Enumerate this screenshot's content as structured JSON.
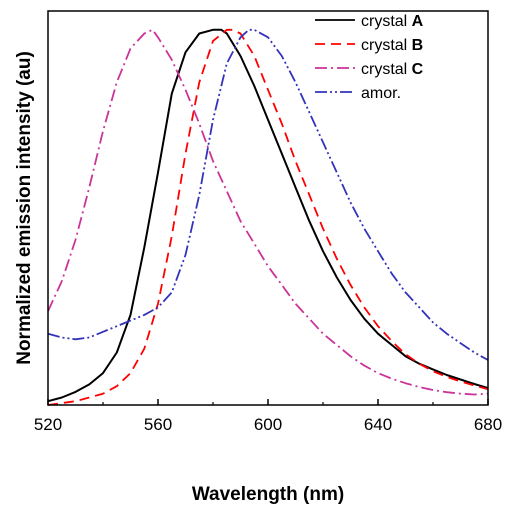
{
  "chart_data": {
    "type": "line",
    "xlabel": "Wavelength (nm)",
    "ylabel": "Normalized emission intensity (au)",
    "xlim": [
      520,
      680
    ],
    "ylim": [
      0,
      1.05
    ],
    "xticks": [
      "520",
      "560",
      "600",
      "640",
      "680"
    ],
    "grid": false,
    "legend_position": "top-right",
    "series": [
      {
        "name": "crystal ",
        "name_bold": "A",
        "color": "#000000",
        "dash": "solid",
        "x": [
          520,
          525,
          530,
          535,
          540,
          545,
          550,
          555,
          560,
          565,
          570,
          575,
          580,
          583,
          585,
          590,
          595,
          600,
          605,
          610,
          615,
          620,
          625,
          630,
          635,
          640,
          645,
          650,
          655,
          660,
          665,
          670,
          675,
          680
        ],
        "y": [
          0.01,
          0.02,
          0.035,
          0.055,
          0.085,
          0.14,
          0.24,
          0.42,
          0.62,
          0.83,
          0.94,
          0.99,
          1.0,
          1.0,
          0.99,
          0.93,
          0.85,
          0.76,
          0.67,
          0.58,
          0.49,
          0.41,
          0.34,
          0.28,
          0.23,
          0.19,
          0.16,
          0.13,
          0.11,
          0.095,
          0.08,
          0.068,
          0.056,
          0.045
        ]
      },
      {
        "name": "crystal ",
        "name_bold": "B",
        "color": "#ff0000",
        "dash": "10,6",
        "x": [
          520,
          525,
          530,
          535,
          540,
          545,
          550,
          555,
          560,
          565,
          570,
          575,
          580,
          585,
          587,
          590,
          595,
          600,
          605,
          610,
          615,
          620,
          625,
          630,
          635,
          640,
          645,
          650,
          655,
          660,
          665,
          670,
          675,
          680
        ],
        "y": [
          0.0,
          0.005,
          0.01,
          0.02,
          0.03,
          0.05,
          0.085,
          0.15,
          0.27,
          0.45,
          0.67,
          0.86,
          0.97,
          1.0,
          1.0,
          0.99,
          0.93,
          0.84,
          0.75,
          0.65,
          0.56,
          0.47,
          0.39,
          0.32,
          0.26,
          0.21,
          0.17,
          0.135,
          0.11,
          0.09,
          0.075,
          0.063,
          0.052,
          0.042
        ]
      },
      {
        "name": "crystal ",
        "name_bold": "C",
        "color": "#cc3399",
        "dash": "12,4,2,4",
        "x": [
          520,
          525,
          530,
          535,
          540,
          545,
          550,
          555,
          558,
          560,
          565,
          570,
          575,
          580,
          585,
          590,
          595,
          600,
          605,
          610,
          615,
          620,
          625,
          630,
          635,
          640,
          645,
          650,
          655,
          660,
          665,
          670,
          675,
          680
        ],
        "y": [
          0.25,
          0.33,
          0.44,
          0.58,
          0.73,
          0.86,
          0.95,
          0.99,
          1.0,
          0.98,
          0.92,
          0.84,
          0.75,
          0.65,
          0.57,
          0.49,
          0.43,
          0.37,
          0.32,
          0.27,
          0.23,
          0.19,
          0.16,
          0.13,
          0.105,
          0.085,
          0.07,
          0.058,
          0.048,
          0.04,
          0.034,
          0.03,
          0.028,
          0.03
        ]
      },
      {
        "name": "amor.",
        "name_bold": "",
        "color": "#3333bb",
        "dash": "12,3,2,3,2,3",
        "x": [
          520,
          525,
          530,
          535,
          540,
          545,
          550,
          555,
          560,
          565,
          570,
          575,
          580,
          585,
          590,
          593,
          595,
          600,
          605,
          610,
          615,
          620,
          625,
          630,
          635,
          640,
          645,
          650,
          655,
          660,
          665,
          670,
          675,
          680
        ],
        "y": [
          0.19,
          0.18,
          0.175,
          0.18,
          0.195,
          0.21,
          0.225,
          0.24,
          0.26,
          0.3,
          0.4,
          0.56,
          0.76,
          0.91,
          0.98,
          1.0,
          1.0,
          0.98,
          0.93,
          0.86,
          0.78,
          0.7,
          0.62,
          0.54,
          0.47,
          0.41,
          0.35,
          0.3,
          0.26,
          0.22,
          0.19,
          0.165,
          0.14,
          0.12
        ]
      }
    ]
  }
}
